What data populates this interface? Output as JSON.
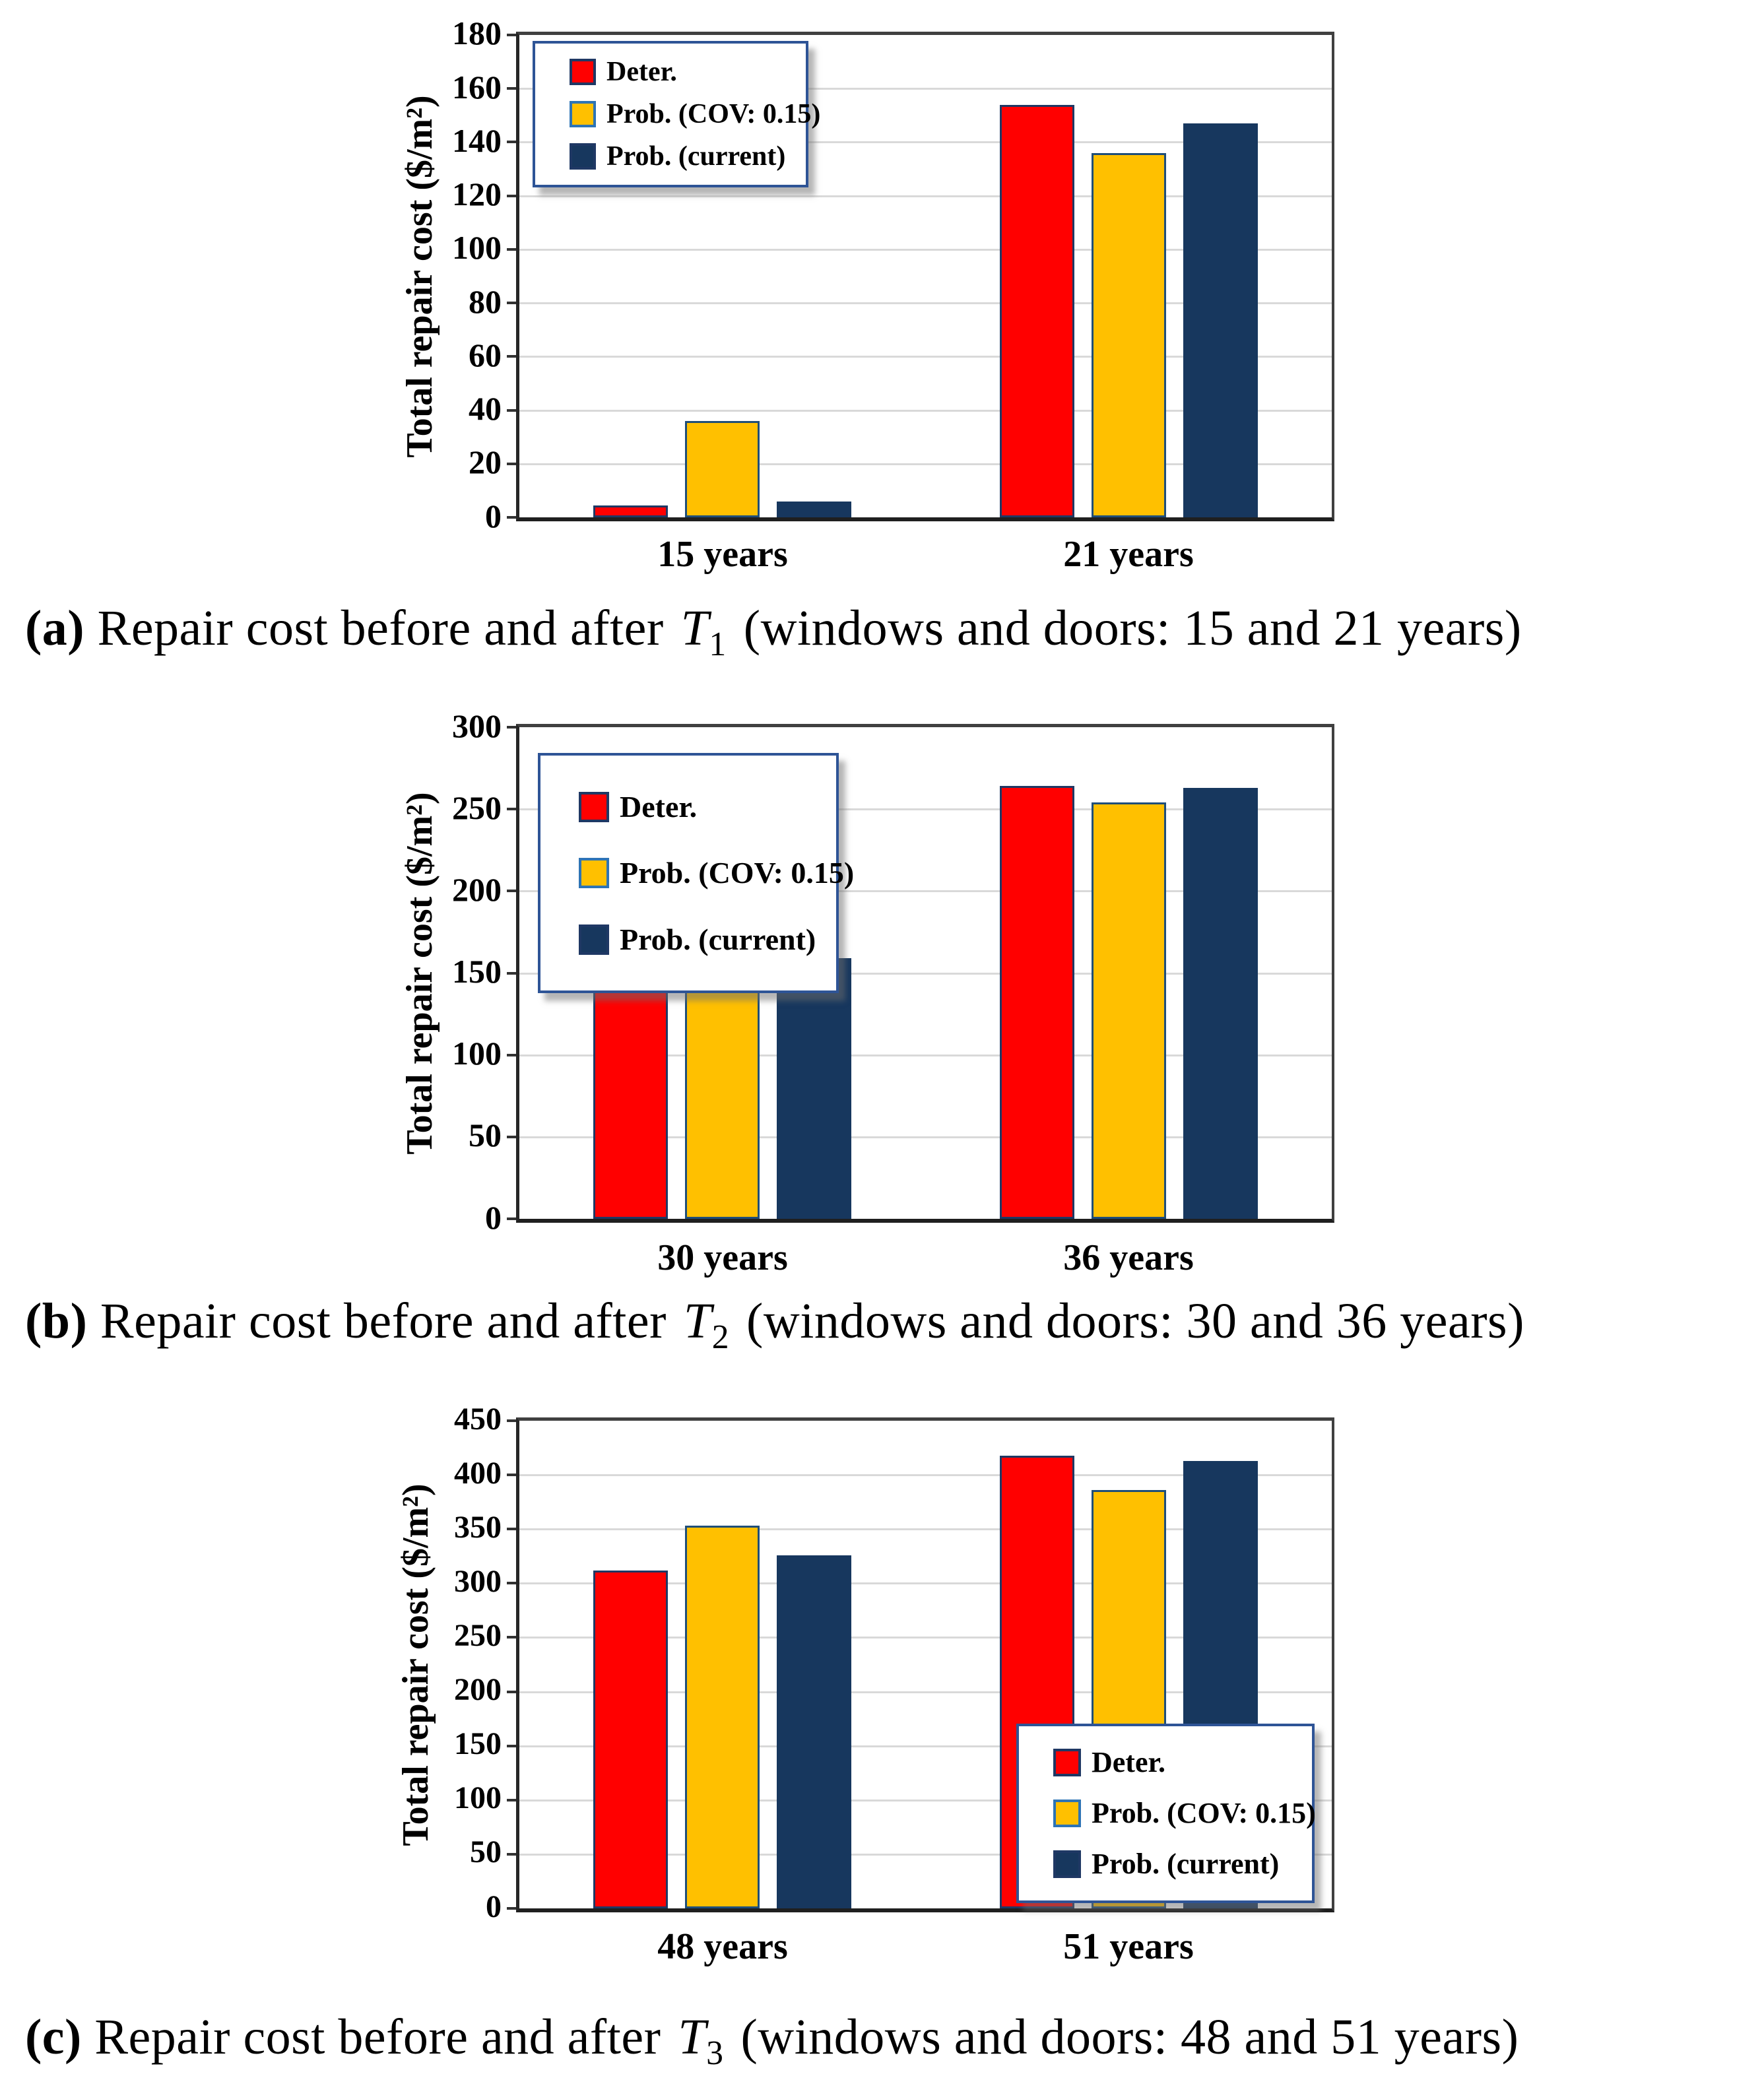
{
  "figure": {
    "description": "Three stacked grouped bar charts comparing deterministic and probabilistic repair cost estimates"
  },
  "chart_data": [
    {
      "type": "bar",
      "panel": "a",
      "title": "",
      "xlabel": "",
      "ylabel": "Total repair cost ($/m²)",
      "ylim": [
        0,
        180
      ],
      "ytick_step": 20,
      "yticks": [
        180,
        160,
        140,
        120,
        100,
        80,
        60,
        40,
        20,
        0
      ],
      "grid": true,
      "legend_position": "top-left",
      "categories": [
        "15 years",
        "21 years"
      ],
      "series": [
        {
          "name": "Deter.",
          "color": "#ff0000",
          "border": "#1f3864",
          "swatch_border": "#1f3864",
          "values": [
            4.5,
            154
          ]
        },
        {
          "name": "Prob. (COV: 0.15)",
          "color": "#ffc000",
          "border": "#1f4e79",
          "swatch_border": "#2e74b5",
          "values": [
            36,
            136
          ]
        },
        {
          "name": "Prob. (current)",
          "color": "#17375e",
          "border": "#17375e",
          "swatch_border": "#1f3864",
          "values": [
            6,
            147
          ]
        }
      ],
      "caption": {
        "label": "(a)",
        "text": " Repair cost before and after",
        "var": "T",
        "sub": "1",
        "rest": "(windows and doors: 15 and 21 years)"
      }
    },
    {
      "type": "bar",
      "panel": "b",
      "title": "",
      "xlabel": "",
      "ylabel": "Total repair cost ($/m²)",
      "ylim": [
        0,
        300
      ],
      "ytick_step": 50,
      "yticks": [
        300,
        250,
        200,
        150,
        100,
        50,
        0
      ],
      "grid": true,
      "legend_position": "top-left",
      "categories": [
        "30 years",
        "36 years"
      ],
      "series": [
        {
          "name": "Deter.",
          "color": "#ff0000",
          "border": "#1f3864",
          "swatch_border": "#1f3864",
          "values": [
            157,
            264
          ]
        },
        {
          "name": "Prob. (COV: 0.15)",
          "color": "#ffc000",
          "border": "#1f4e79",
          "swatch_border": "#2e74b5",
          "values": [
            180,
            254
          ]
        },
        {
          "name": "Prob. (current)",
          "color": "#17375e",
          "border": "#17375e",
          "swatch_border": "#1f3864",
          "values": [
            159,
            263
          ]
        }
      ],
      "caption": {
        "label": "(b)",
        "text": " Repair cost before and after",
        "var": "T",
        "sub": "2",
        "rest": "(windows and doors: 30 and 36 years)"
      }
    },
    {
      "type": "bar",
      "panel": "c",
      "title": "",
      "xlabel": "",
      "ylabel": "Total repair cost ($/m²)",
      "ylim": [
        0,
        450
      ],
      "ytick_step": 50,
      "yticks": [
        450,
        400,
        350,
        300,
        250,
        200,
        150,
        100,
        50,
        0
      ],
      "grid": true,
      "legend_position": "bottom-right",
      "categories": [
        "48 years",
        "51 years"
      ],
      "series": [
        {
          "name": "Deter.",
          "color": "#ff0000",
          "border": "#1f3864",
          "swatch_border": "#1f3864",
          "values": [
            312,
            418
          ]
        },
        {
          "name": "Prob. (COV: 0.15)",
          "color": "#ffc000",
          "border": "#1f4e79",
          "swatch_border": "#2e74b5",
          "values": [
            353,
            386
          ]
        },
        {
          "name": "Prob. (current)",
          "color": "#17375e",
          "border": "#17375e",
          "swatch_border": "#1f3864",
          "values": [
            326,
            413
          ]
        }
      ],
      "caption": {
        "label": "(c)",
        "text": " Repair cost before and after",
        "var": "T",
        "sub": "3",
        "rest": "(windows and doors: 48 and 51 years)"
      }
    }
  ]
}
